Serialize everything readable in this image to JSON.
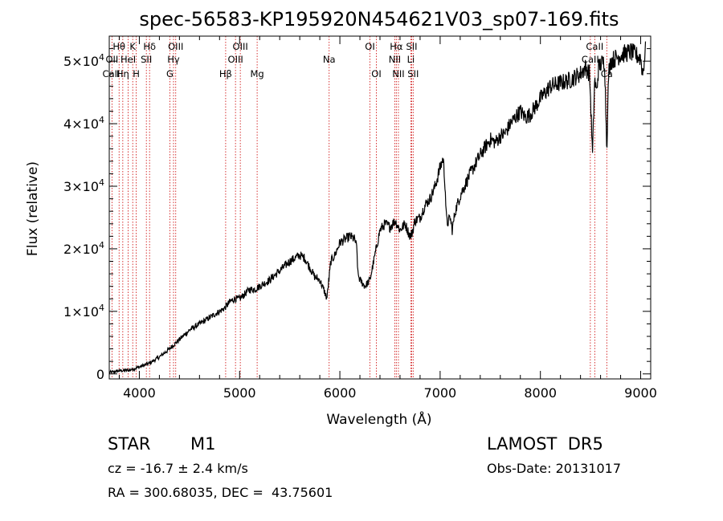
{
  "chart_data": {
    "type": "line",
    "title": "spec-56583-KP195920N454621V03_sp07-169.fits",
    "xlabel": "Wavelength (Å)",
    "ylabel": "Flux (relative)",
    "xlim": [
      3700,
      9100
    ],
    "ylim": [
      -800,
      54000
    ],
    "x_ticks": [
      4000,
      5000,
      6000,
      7000,
      8000,
      9000
    ],
    "y_ticks": [
      {
        "value": 0,
        "mantissa": "0",
        "exponent": ""
      },
      {
        "value": 10000,
        "mantissa": "1×10",
        "exponent": "4"
      },
      {
        "value": 20000,
        "mantissa": "2×10",
        "exponent": "4"
      },
      {
        "value": 30000,
        "mantissa": "3×10",
        "exponent": "4"
      },
      {
        "value": 40000,
        "mantissa": "4×10",
        "exponent": "4"
      },
      {
        "value": 50000,
        "mantissa": "5×10",
        "exponent": "4"
      }
    ],
    "grid": false,
    "series": [
      {
        "x": [
          3700,
          3800,
          3900,
          4000,
          4100,
          4200,
          4300,
          4400,
          4500,
          4600,
          4700,
          4800,
          4850,
          4900,
          4950,
          5000,
          5100,
          5150,
          5200,
          5300,
          5400,
          5500,
          5600,
          5650,
          5700,
          5750,
          5800,
          5850,
          5870,
          5890,
          5910,
          5950,
          6000,
          6050,
          6100,
          6150,
          6170,
          6180,
          6200,
          6250,
          6300,
          6350,
          6400,
          6450,
          6500,
          6550,
          6600,
          6650,
          6700,
          6720,
          6750,
          6800,
          6850,
          6900,
          6950,
          7000,
          7030,
          7050,
          7060,
          7070,
          7100,
          7120,
          7150,
          7200,
          7300,
          7400,
          7500,
          7550,
          7600,
          7650,
          7700,
          7800,
          7850,
          7900,
          8000,
          8100,
          8200,
          8300,
          8400,
          8450,
          8490,
          8500,
          8520,
          8540,
          8542,
          8560,
          8580,
          8600,
          8640,
          8662,
          8680,
          8700,
          8800,
          8900,
          9000,
          9020,
          9050
        ],
        "y": [
          200,
          500,
          600,
          1100,
          1700,
          2700,
          4000,
          5500,
          7000,
          8000,
          9000,
          10000,
          10500,
          11500,
          12000,
          12000,
          13500,
          13500,
          14000,
          15000,
          16500,
          18000,
          19000,
          18500,
          17000,
          15500,
          15000,
          13000,
          12000,
          15000,
          18000,
          19000,
          21000,
          21500,
          22000,
          21500,
          20000,
          16000,
          15000,
          14000,
          15000,
          19000,
          23000,
          24000,
          23500,
          24500,
          23000,
          24000,
          22000,
          22500,
          24500,
          25000,
          27000,
          28000,
          30000,
          33000,
          34500,
          30000,
          25500,
          24000,
          25000,
          23000,
          26000,
          28500,
          32000,
          35000,
          37500,
          37000,
          38000,
          38500,
          40000,
          42000,
          41000,
          41500,
          44000,
          46000,
          46500,
          47000,
          48000,
          49000,
          48000,
          44000,
          35000,
          46500,
          47000,
          45000,
          49000,
          49500,
          50000,
          36000,
          48000,
          50000,
          51000,
          51500,
          50500,
          48000,
          52000
        ]
      }
    ],
    "annotations": [
      {
        "label": "Hθ",
        "x": 3798,
        "row": 0
      },
      {
        "label": "OII",
        "x": 3727,
        "row": 1
      },
      {
        "label": "CaII",
        "x": 3720,
        "row": 2
      },
      {
        "label": "K",
        "x": 3934,
        "row": 0
      },
      {
        "label": "HeI",
        "x": 3889,
        "row": 1
      },
      {
        "label": "Hη",
        "x": 3835,
        "row": 2
      },
      {
        "label": "Hδ",
        "x": 4102,
        "row": 0
      },
      {
        "label": "SII",
        "x": 4070,
        "row": 1
      },
      {
        "label": "H",
        "x": 3969,
        "row": 2
      },
      {
        "label": "OIII",
        "x": 4363,
        "row": 0
      },
      {
        "label": "Hγ",
        "x": 4341,
        "row": 1
      },
      {
        "label": "G",
        "x": 4305,
        "row": 2
      },
      {
        "label": "OIII",
        "x": 5007,
        "row": 0
      },
      {
        "label": "OIII",
        "x": 4959,
        "row": 1
      },
      {
        "label": "Hβ",
        "x": 4861,
        "row": 2
      },
      {
        "label": "Mg",
        "x": 5175,
        "row": 2
      },
      {
        "label": "Na",
        "x": 5893,
        "row": 1
      },
      {
        "label": "OI",
        "x": 6300,
        "row": 0
      },
      {
        "label": "OI",
        "x": 6364,
        "row": 2
      },
      {
        "label": "Hα",
        "x": 6563,
        "row": 0
      },
      {
        "label": "NII",
        "x": 6548,
        "row": 1
      },
      {
        "label": "NII",
        "x": 6584,
        "row": 2
      },
      {
        "label": "SII",
        "x": 6716,
        "row": 0
      },
      {
        "label": "Li",
        "x": 6708,
        "row": 1
      },
      {
        "label": "SII",
        "x": 6731,
        "row": 2
      },
      {
        "label": "CaII",
        "x": 8542,
        "row": 0
      },
      {
        "label": "CaII",
        "x": 8498,
        "row": 1
      },
      {
        "label": "Ca",
        "x": 8662,
        "row": 2
      }
    ],
    "line_positions": [
      3727,
      3798,
      3835,
      3889,
      3934,
      3969,
      4070,
      4102,
      4305,
      4341,
      4363,
      4861,
      4959,
      5007,
      5175,
      5893,
      6300,
      6364,
      6548,
      6563,
      6584,
      6708,
      6716,
      6731,
      8498,
      8542,
      8662
    ],
    "line_color": "#cc0000",
    "trace_color": "#000000"
  },
  "info": {
    "class": "STAR",
    "subclass": "M1",
    "survey": "LAMOST  DR5",
    "cz": "cz = -16.7 ± 2.4 km/s",
    "obs_date": "Obs-Date: 20131017",
    "coords": "RA = 300.68035, DEC =  43.75601"
  }
}
